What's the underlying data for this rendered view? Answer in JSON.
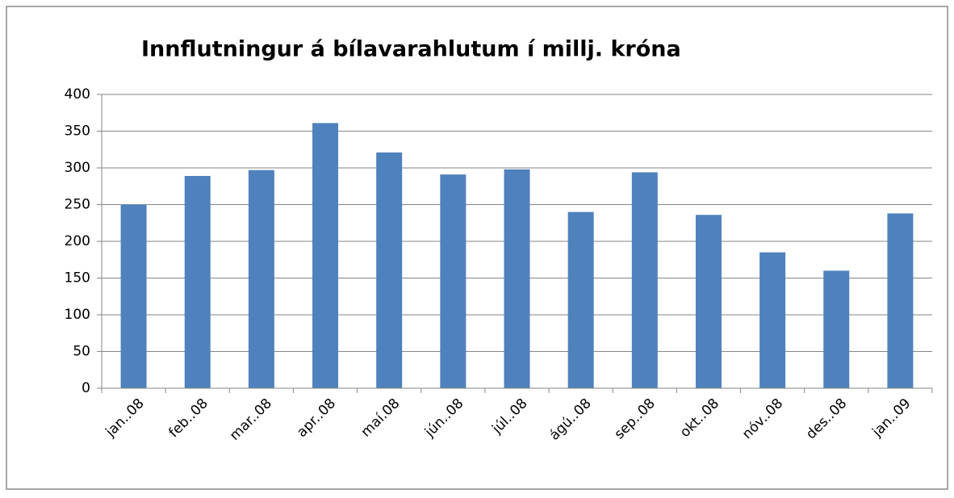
{
  "chart_data": {
    "type": "bar",
    "title": "Innflutningur á bílavarahlutum í millj. króna",
    "categories": [
      "jan..08",
      "feb..08",
      "mar..08",
      "apr..08",
      "maí.08",
      "jún..08",
      "júl..08",
      "ágú..08",
      "sep..08",
      "okt..08",
      "nóv..08",
      "des..08",
      "jan..09"
    ],
    "values": [
      250,
      289,
      297,
      361,
      321,
      291,
      298,
      240,
      294,
      236,
      185,
      160,
      238
    ],
    "color": "#4f81bd",
    "ylim": [
      0,
      400
    ],
    "yticks": [
      0,
      50,
      100,
      150,
      200,
      250,
      300,
      350,
      400
    ],
    "grid": true
  }
}
